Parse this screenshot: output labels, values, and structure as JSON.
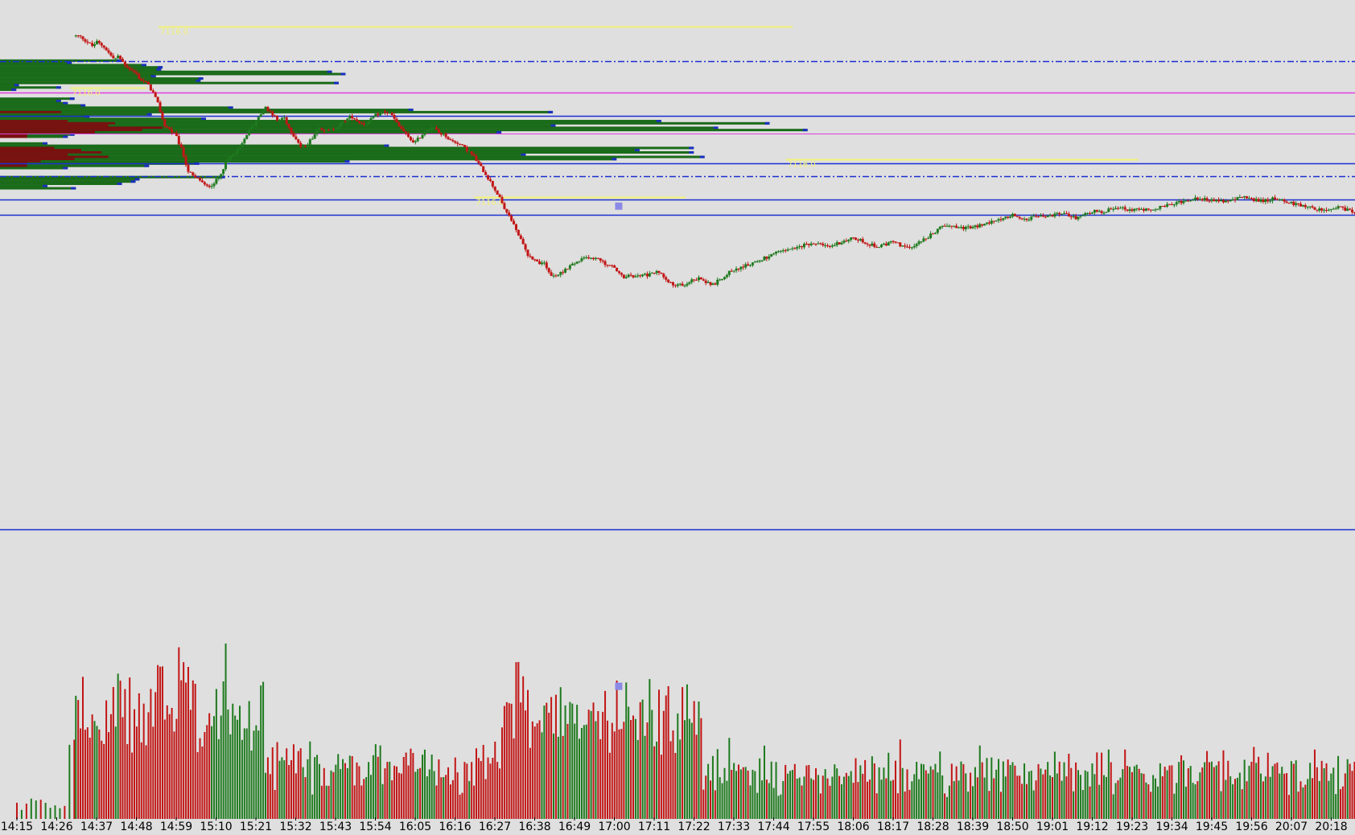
{
  "chart_data": {
    "type": "candlestick",
    "title": "",
    "xlabel": "",
    "ylabel": "",
    "grid": false,
    "colors": {
      "background": "#dfdfdf",
      "up": "#1e7a1e",
      "down": "#c21515",
      "level": "#1a2fd0",
      "pivot": "#e040e0",
      "key_level": "#f2f27a",
      "marker": "#8a8ae6",
      "profile_up": "#1a6b1a",
      "profile_down": "#7a1010",
      "profile_tip": "#1a2fc0"
    },
    "x_ticks": [
      "14:15",
      "14:26",
      "14:37",
      "14:48",
      "14:59",
      "15:10",
      "15:21",
      "15:32",
      "15:43",
      "15:54",
      "16:05",
      "16:16",
      "16:27",
      "16:38",
      "16:49",
      "17:00",
      "17:11",
      "17:22",
      "17:33",
      "17:44",
      "17:55",
      "18:06",
      "18:17",
      "18:28",
      "18:39",
      "18:50",
      "19:01",
      "19:12",
      "19:23",
      "19:34",
      "19:45",
      "19:56",
      "20:07",
      "20:18"
    ],
    "price_path": [
      [
        0,
        68.4
      ],
      [
        0.05,
        68.6
      ],
      [
        0.1,
        66.8
      ],
      [
        0.13,
        67.6
      ],
      [
        0.16,
        69.4
      ],
      [
        0.18,
        70.2
      ],
      [
        0.2,
        72.6
      ],
      [
        0.3,
        73.8
      ],
      [
        0.4,
        77.9
      ],
      [
        0.5,
        81.7
      ],
      [
        0.55,
        84.2
      ],
      [
        0.62,
        85.8
      ],
      [
        0.7,
        88.9
      ],
      [
        0.8,
        91.4
      ],
      [
        0.9,
        93.1
      ],
      [
        1.0,
        92.2
      ],
      [
        1.15,
        91.8
      ],
      [
        1.25,
        92.6
      ],
      [
        1.4,
        92.9
      ],
      [
        1.5,
        93.5
      ],
      [
        1.65,
        92.8
      ],
      [
        1.8,
        91.5
      ],
      [
        1.9,
        90.6
      ],
      [
        2.0,
        91.8
      ],
      [
        2.2,
        90.4
      ],
      [
        2.35,
        88.2
      ],
      [
        2.45,
        87.1
      ],
      [
        2.55,
        87.9
      ],
      [
        2.7,
        85.8
      ],
      [
        2.85,
        84.4
      ],
      [
        3.0,
        83.2
      ],
      [
        3.1,
        81.7
      ],
      [
        3.25,
        80.8
      ],
      [
        3.4,
        78.6
      ],
      [
        3.55,
        74.9
      ],
      [
        3.7,
        69.5
      ],
      [
        3.85,
        68.2
      ],
      [
        4.0,
        66.4
      ],
      [
        4.15,
        62.5
      ],
      [
        4.3,
        57.2
      ],
      [
        4.45,
        55.4
      ],
      [
        4.6,
        54.8
      ],
      [
        4.75,
        52.9
      ],
      [
        4.9,
        53.6
      ],
      [
        5.05,
        55.1
      ],
      [
        5.2,
        58.5
      ],
      [
        5.35,
        60.9
      ],
      [
        5.5,
        62.1
      ],
      [
        5.65,
        64.2
      ],
      [
        5.8,
        67.7
      ],
      [
        5.95,
        69.6
      ],
      [
        6.1,
        72.5
      ],
      [
        6.25,
        74.2
      ],
      [
        6.4,
        72.8
      ],
      [
        6.55,
        70.5
      ],
      [
        6.7,
        71.8
      ],
      [
        6.85,
        68.4
      ],
      [
        7.0,
        66.1
      ],
      [
        7.15,
        63.2
      ],
      [
        7.3,
        64.5
      ],
      [
        7.45,
        66.7
      ],
      [
        7.6,
        69.2
      ],
      [
        7.7,
        68.2
      ],
      [
        7.8,
        67.8
      ],
      [
        8.0,
        68.7
      ],
      [
        8.2,
        70.4
      ],
      [
        8.4,
        71.9
      ],
      [
        8.55,
        70.6
      ],
      [
        8.7,
        69.8
      ],
      [
        8.85,
        70.5
      ],
      [
        9.0,
        72.1
      ],
      [
        9.2,
        73.2
      ],
      [
        9.4,
        72.4
      ],
      [
        9.55,
        69.7
      ],
      [
        9.7,
        67.9
      ],
      [
        9.85,
        65.8
      ],
      [
        10.0,
        64.9
      ],
      [
        10.15,
        66.7
      ],
      [
        10.3,
        68.4
      ],
      [
        10.45,
        68.9
      ],
      [
        10.6,
        67.4
      ],
      [
        10.75,
        66.8
      ],
      [
        10.9,
        65.2
      ],
      [
        11.05,
        64.9
      ],
      [
        11.2,
        63.7
      ],
      [
        11.35,
        62.4
      ],
      [
        11.5,
        60.6
      ],
      [
        11.65,
        58.2
      ],
      [
        11.8,
        55.9
      ],
      [
        11.95,
        53.2
      ],
      [
        12.1,
        50.4
      ],
      [
        12.25,
        46.9
      ],
      [
        12.4,
        44.5
      ],
      [
        12.55,
        41.1
      ],
      [
        12.7,
        37.6
      ],
      [
        12.85,
        34.3
      ],
      [
        13.0,
        33.6
      ],
      [
        13.1,
        32.5
      ],
      [
        13.2,
        33.2
      ],
      [
        13.3,
        30.8
      ],
      [
        13.45,
        28.9
      ],
      [
        13.6,
        29.5
      ],
      [
        13.75,
        30.7
      ],
      [
        13.9,
        31.9
      ],
      [
        14.05,
        32.7
      ],
      [
        14.2,
        33.5
      ],
      [
        14.35,
        34.2
      ],
      [
        14.5,
        33.4
      ],
      [
        14.6,
        34.1
      ],
      [
        14.7,
        32.8
      ],
      [
        14.85,
        31.9
      ],
      [
        15.0,
        31.4
      ],
      [
        15.1,
        29.9
      ],
      [
        15.25,
        28.4
      ],
      [
        15.4,
        29.3
      ],
      [
        15.55,
        28.7
      ],
      [
        15.7,
        29.6
      ],
      [
        15.85,
        29.2
      ],
      [
        16.0,
        30.1
      ],
      [
        16.15,
        29.9
      ],
      [
        16.3,
        28.5
      ],
      [
        16.5,
        26.2
      ],
      [
        16.6,
        26.8
      ],
      [
        16.75,
        26.6
      ],
      [
        16.9,
        27.8
      ],
      [
        17.05,
        28.2
      ],
      [
        17.2,
        28.5
      ],
      [
        17.35,
        27.1
      ],
      [
        17.5,
        26.9
      ],
      [
        17.65,
        28.2
      ],
      [
        17.8,
        29.4
      ],
      [
        17.95,
        30.7
      ],
      [
        18.1,
        31.1
      ],
      [
        18.25,
        31.6
      ],
      [
        18.4,
        32.2
      ],
      [
        18.55,
        32.9
      ],
      [
        18.7,
        33.5
      ],
      [
        18.85,
        34.2
      ],
      [
        19.0,
        34.9
      ],
      [
        19.2,
        35.7
      ],
      [
        19.4,
        36.1
      ],
      [
        19.6,
        36.6
      ],
      [
        19.8,
        37.4
      ],
      [
        20.0,
        38.1
      ],
      [
        20.2,
        37.2
      ],
      [
        20.4,
        36.8
      ],
      [
        20.6,
        37.9
      ],
      [
        20.8,
        38.4
      ],
      [
        21.0,
        39.2
      ],
      [
        21.2,
        38.5
      ],
      [
        21.4,
        37.6
      ],
      [
        21.6,
        36.9
      ],
      [
        21.8,
        37.5
      ],
      [
        22.0,
        38.3
      ],
      [
        22.2,
        37.2
      ],
      [
        22.4,
        36.4
      ],
      [
        22.6,
        37.9
      ],
      [
        22.8,
        39.1
      ],
      [
        23.0,
        40.4
      ],
      [
        23.2,
        42.1
      ],
      [
        23.4,
        42.9
      ],
      [
        23.6,
        42.3
      ],
      [
        23.8,
        41.8
      ],
      [
        24.0,
        42.2
      ],
      [
        24.2,
        42.6
      ],
      [
        24.4,
        43.4
      ],
      [
        24.6,
        44.1
      ],
      [
        24.8,
        44.8
      ],
      [
        25.0,
        45.4
      ],
      [
        25.2,
        44.9
      ],
      [
        25.4,
        44.2
      ],
      [
        25.6,
        45.1
      ],
      [
        25.8,
        44.8
      ],
      [
        26.0,
        45.3
      ],
      [
        26.2,
        45.9
      ],
      [
        26.4,
        45.2
      ],
      [
        26.6,
        44.7
      ],
      [
        26.8,
        45.6
      ],
      [
        27.0,
        46.4
      ],
      [
        27.2,
        46.1
      ],
      [
        27.4,
        46.8
      ],
      [
        27.6,
        47.7
      ],
      [
        27.8,
        47.3
      ],
      [
        28.0,
        46.6
      ],
      [
        28.2,
        47.2
      ],
      [
        28.4,
        46.8
      ],
      [
        28.6,
        47.3
      ],
      [
        28.8,
        47.7
      ],
      [
        29.0,
        48.2
      ],
      [
        29.2,
        48.8
      ],
      [
        29.4,
        49.5
      ],
      [
        29.6,
        50.1
      ],
      [
        29.8,
        49.7
      ],
      [
        30.0,
        49.4
      ],
      [
        30.2,
        48.9
      ],
      [
        30.4,
        49.3
      ],
      [
        30.6,
        49.8
      ],
      [
        30.8,
        50.2
      ],
      [
        31.0,
        49.7
      ],
      [
        31.2,
        49.1
      ],
      [
        31.4,
        49.5
      ],
      [
        31.6,
        49.9
      ],
      [
        31.8,
        49.2
      ],
      [
        32.0,
        48.6
      ],
      [
        32.2,
        48.1
      ],
      [
        32.4,
        47.6
      ],
      [
        32.6,
        47.1
      ],
      [
        32.8,
        46.6
      ],
      [
        33.0,
        46.9
      ],
      [
        33.2,
        47.4
      ],
      [
        33.4,
        46.7
      ],
      [
        33.6,
        46.2
      ],
      [
        33.75,
        45.9
      ]
    ],
    "ylim": [
      0,
      100
    ],
    "volume_ylim": [
      0,
      100
    ],
    "levels": [
      {
        "name": "dash-dot-upper",
        "y": 86.6,
        "color": "#1a2fd0",
        "style": "dashdot",
        "x0": 0.0,
        "x1": 1.0
      },
      {
        "name": "pivot-upper",
        "y": 78.2,
        "color": "#e040e0",
        "style": "solid",
        "x0": 0.0,
        "x1": 1.0
      },
      {
        "name": "blue-1",
        "y": 71.9,
        "color": "#1a2fd0",
        "style": "solid",
        "x0": 0.0,
        "x1": 1.0
      },
      {
        "name": "pivot-lower",
        "y": 67.3,
        "color": "#e040e0",
        "style": "solid",
        "x0": 0.0,
        "x1": 1.0,
        "thin": true
      },
      {
        "name": "blue-2",
        "y": 59.2,
        "color": "#1a2fd0",
        "style": "solid",
        "x0": 0.0,
        "x1": 1.0
      },
      {
        "name": "dash-dot-lower",
        "y": 55.8,
        "color": "#1a2fd0",
        "style": "dashdot",
        "x0": 0.0,
        "x1": 1.0
      },
      {
        "name": "blue-3",
        "y": 49.5,
        "color": "#1a2fd0",
        "style": "solid",
        "x0": 0.0,
        "x1": 1.0
      },
      {
        "name": "blue-4",
        "y": 45.5,
        "color": "#1a2fd0",
        "style": "solid",
        "x0": 0.0,
        "x1": 1.0
      }
    ],
    "key_levels": [
      {
        "name": "high",
        "y": 95.8,
        "x0": 0.117,
        "x1": 0.585,
        "label": "7116.0"
      },
      {
        "name": "mid-left",
        "y": 79.6,
        "x0": 0.052,
        "x1": 0.108,
        "label": "7116.0"
      },
      {
        "name": "low",
        "y": 50.3,
        "x0": 0.35,
        "x1": 0.506,
        "label": "7116.0"
      },
      {
        "name": "right",
        "y": 60.3,
        "x0": 0.58,
        "x1": 0.84,
        "label": "7116.0"
      }
    ],
    "volume_profile": [
      {
        "y": 87.1,
        "len": 0.09,
        "down": 0
      },
      {
        "y": 86.5,
        "len": 0.053,
        "down": 0
      },
      {
        "y": 85.9,
        "len": 0.108,
        "down": 0
      },
      {
        "y": 85.3,
        "len": 0.12,
        "down": 0
      },
      {
        "y": 84.7,
        "len": 0.119,
        "down": 0
      },
      {
        "y": 84.1,
        "len": 0.245,
        "down": 0
      },
      {
        "y": 83.5,
        "len": 0.255,
        "down": 0
      },
      {
        "y": 82.9,
        "len": 0.115,
        "down": 0
      },
      {
        "y": 82.3,
        "len": 0.15,
        "down": 0
      },
      {
        "y": 81.7,
        "len": 0.148,
        "down": 0
      },
      {
        "y": 81.1,
        "len": 0.25,
        "down": 0
      },
      {
        "y": 80.5,
        "len": 0.014,
        "down": 0
      },
      {
        "y": 79.9,
        "len": 0.045,
        "down": 0
      },
      {
        "y": 79.3,
        "len": 0.012,
        "down": 0
      },
      {
        "y": 76.9,
        "len": 0.055,
        "down": 0
      },
      {
        "y": 76.3,
        "len": 0.045,
        "down": 0
      },
      {
        "y": 75.7,
        "len": 0.05,
        "down": 0
      },
      {
        "y": 75.1,
        "len": 0.063,
        "down": 0
      },
      {
        "y": 74.5,
        "len": 0.172,
        "down": 0
      },
      {
        "y": 73.9,
        "len": 0.305,
        "down": 0
      },
      {
        "y": 73.3,
        "len": 0.408,
        "down": 0.045
      },
      {
        "y": 72.7,
        "len": 0.112,
        "down": 0
      },
      {
        "y": 72.1,
        "len": 0.066,
        "down": 0
      },
      {
        "y": 71.5,
        "len": 0.152,
        "down": 0
      },
      {
        "y": 70.9,
        "len": 0.488,
        "down": 0.05
      },
      {
        "y": 70.3,
        "len": 0.568,
        "down": 0.085
      },
      {
        "y": 69.7,
        "len": 0.41,
        "down": 0.08
      },
      {
        "y": 69.1,
        "len": 0.53,
        "down": 0.12
      },
      {
        "y": 68.5,
        "len": 0.596,
        "down": 0.105
      },
      {
        "y": 67.9,
        "len": 0.37,
        "down": 0.07
      },
      {
        "y": 67.3,
        "len": 0.055,
        "down": 0.02
      },
      {
        "y": 66.7,
        "len": 0.05,
        "down": 0.02
      },
      {
        "y": 64.9,
        "len": 0.035,
        "down": 0
      },
      {
        "y": 64.3,
        "len": 0.287,
        "down": 0
      },
      {
        "y": 63.7,
        "len": 0.512,
        "down": 0.04
      },
      {
        "y": 63.1,
        "len": 0.472,
        "down": 0.06
      },
      {
        "y": 62.5,
        "len": 0.512,
        "down": 0.075
      },
      {
        "y": 61.9,
        "len": 0.388,
        "down": 0.05
      },
      {
        "y": 61.3,
        "len": 0.52,
        "down": 0.08
      },
      {
        "y": 60.7,
        "len": 0.455,
        "down": 0.055
      },
      {
        "y": 60.1,
        "len": 0.258,
        "down": 0.03
      },
      {
        "y": 59.5,
        "len": 0.147,
        "down": 0.02
      },
      {
        "y": 58.9,
        "len": 0.11,
        "down": 0.02
      },
      {
        "y": 58.3,
        "len": 0.05,
        "down": 0
      },
      {
        "y": 55.9,
        "len": 0.166,
        "down": 0
      },
      {
        "y": 55.3,
        "len": 0.103,
        "down": 0
      },
      {
        "y": 54.7,
        "len": 0.1,
        "down": 0
      },
      {
        "y": 54.1,
        "len": 0.09,
        "down": 0
      },
      {
        "y": 53.5,
        "len": 0.035,
        "down": 0
      },
      {
        "y": 52.9,
        "len": 0.056,
        "down": 0
      }
    ],
    "markers": [
      {
        "name": "price-marker",
        "x": 15.1,
        "y": 47.9
      },
      {
        "name": "volume-marker",
        "x": 15.1,
        "v": 52
      }
    ]
  }
}
